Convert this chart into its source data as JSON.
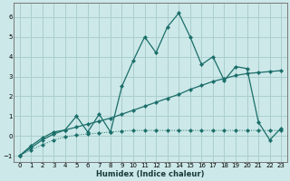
{
  "bg_color": "#cce8e8",
  "grid_color": "#aacece",
  "line_color": "#1a6e6a",
  "xlabel": "Humidex (Indice chaleur)",
  "xlim": [
    -0.5,
    23.5
  ],
  "ylim": [
    -1.3,
    6.7
  ],
  "yticks": [
    -1,
    0,
    1,
    2,
    3,
    4,
    5,
    6
  ],
  "xticks": [
    0,
    1,
    2,
    3,
    4,
    5,
    6,
    7,
    8,
    9,
    10,
    11,
    12,
    13,
    14,
    15,
    16,
    17,
    18,
    19,
    20,
    21,
    22,
    23
  ],
  "series1_x": [
    0,
    1,
    2,
    3,
    4,
    5,
    6,
    7,
    8,
    9,
    10,
    11,
    12,
    13,
    14,
    15,
    16,
    17,
    18,
    19,
    20,
    21,
    22,
    23
  ],
  "series1_y": [
    -1.0,
    -0.7,
    -0.45,
    -0.2,
    -0.05,
    0.05,
    0.1,
    0.15,
    0.2,
    0.25,
    0.28,
    0.28,
    0.28,
    0.28,
    0.28,
    0.28,
    0.28,
    0.28,
    0.28,
    0.28,
    0.28,
    0.28,
    0.28,
    0.28
  ],
  "series2_x": [
    0,
    1,
    2,
    3,
    4,
    5,
    6,
    7,
    8,
    9,
    10,
    11,
    12,
    13,
    14,
    15,
    16,
    17,
    18,
    19,
    20,
    21,
    22,
    23
  ],
  "series2_y": [
    -1.0,
    -0.6,
    -0.2,
    0.1,
    0.3,
    0.45,
    0.6,
    0.75,
    0.9,
    1.1,
    1.3,
    1.5,
    1.7,
    1.9,
    2.1,
    2.35,
    2.55,
    2.75,
    2.9,
    3.05,
    3.15,
    3.2,
    3.25,
    3.3
  ],
  "series3_x": [
    0,
    1,
    2,
    3,
    4,
    5,
    6,
    7,
    8,
    9,
    10,
    11,
    12,
    13,
    14,
    15,
    16,
    17,
    18,
    19,
    20,
    21,
    22,
    23
  ],
  "series3_y": [
    -1.0,
    -0.5,
    -0.1,
    0.2,
    0.3,
    1.0,
    0.2,
    1.1,
    0.2,
    2.5,
    3.8,
    5.0,
    4.2,
    5.5,
    6.2,
    5.0,
    3.6,
    4.0,
    2.8,
    3.5,
    3.4,
    0.7,
    -0.2,
    0.4
  ]
}
